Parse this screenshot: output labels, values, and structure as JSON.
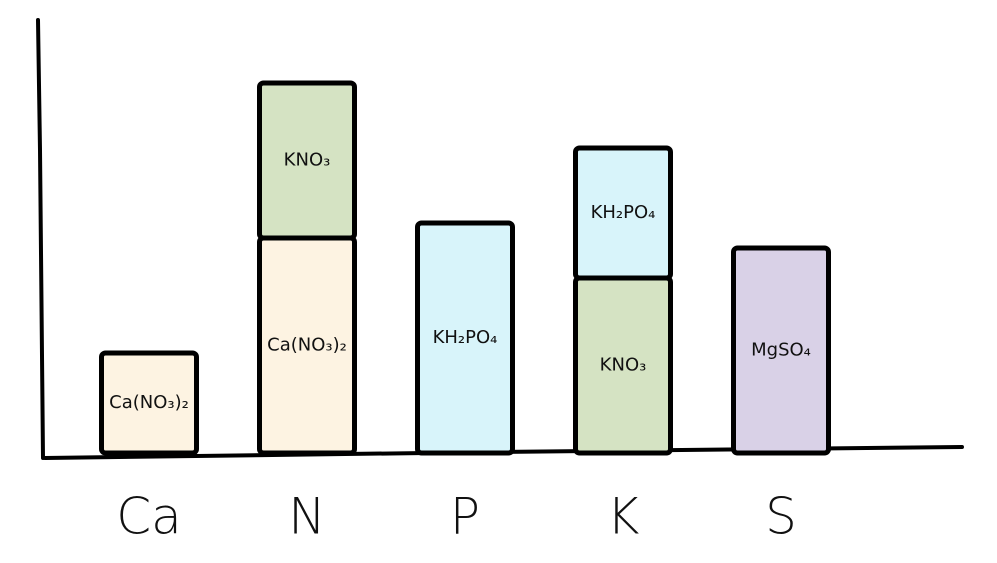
{
  "chart_data": {
    "type": "stacked-bar",
    "categories": [
      "Ca",
      "N",
      "P",
      "K",
      "S"
    ],
    "series": [
      {
        "name": "Ca(NO₃)₂",
        "color": "#fdf3e2",
        "values": [
          100,
          215,
          null,
          null,
          null
        ]
      },
      {
        "name": "KNO₃",
        "color": "#d5e3c3",
        "values": [
          null,
          155,
          null,
          175,
          null
        ]
      },
      {
        "name": "KH₂PO₄",
        "color": "#d8f4fa",
        "values": [
          null,
          null,
          230,
          130,
          null
        ]
      },
      {
        "name": "MgSO₄",
        "color": "#d9d1e7",
        "values": [
          null,
          null,
          null,
          null,
          205
        ]
      }
    ],
    "ylim": [
      0,
      400
    ]
  }
}
